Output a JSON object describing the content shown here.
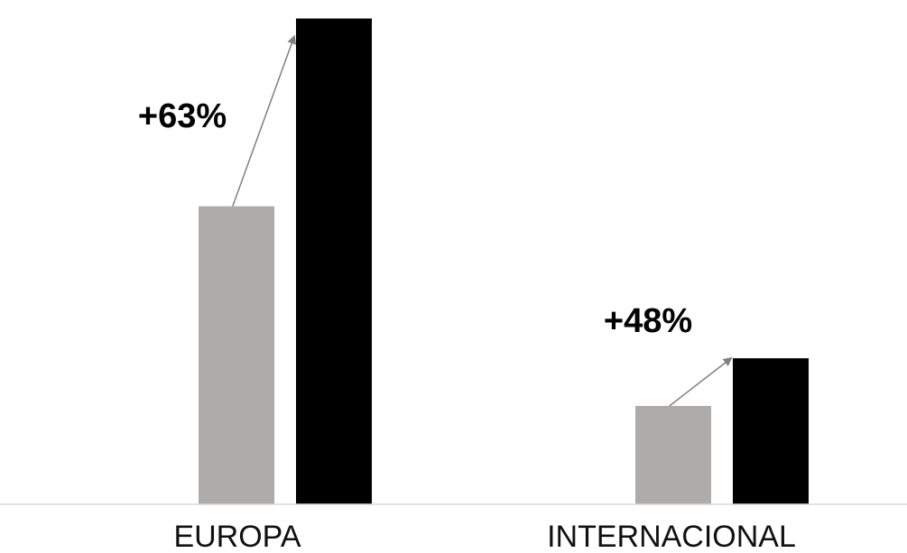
{
  "chart_data": {
    "type": "bar",
    "categories": [
      "EUROPA",
      "INTERNACIONAL"
    ],
    "series": [
      {
        "color": "#aeabab",
        "values": [
          100,
          33
        ]
      },
      {
        "color": "#000000",
        "values": [
          163,
          49
        ]
      }
    ],
    "ylim": [
      0,
      168
    ],
    "grid": false,
    "legend": "none",
    "annotations": [
      {
        "text": "+63%",
        "category": "EUROPA",
        "from_series": 0,
        "to_series": 1
      },
      {
        "text": "+48%",
        "category": "INTERNACIONAL",
        "from_series": 0,
        "to_series": 1
      }
    ],
    "arrow_color": "#808080",
    "axis_color": "#d9d9d9"
  }
}
